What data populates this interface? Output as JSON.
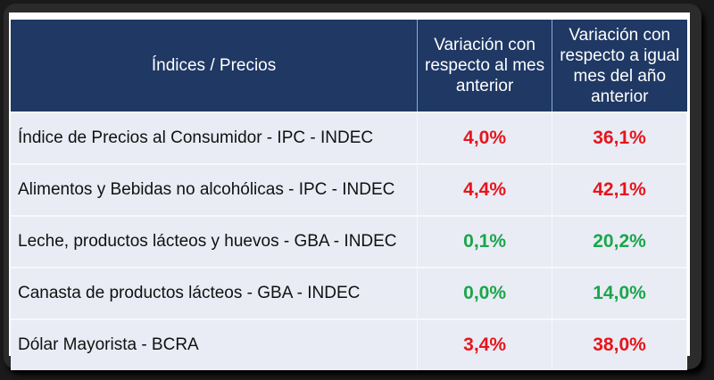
{
  "headers": [
    "Índices / Precios",
    "Variación con respecto al mes anterior",
    "Variación con respecto a igual mes del año anterior"
  ],
  "colors": {
    "header_bg": "#1f3864",
    "increase": "#e8141b",
    "low": "#1aa64a"
  },
  "rows": [
    {
      "label": "Índice de Precios al Consumidor - IPC - INDEC",
      "monthly": "4,0%",
      "yearly": "36,1%",
      "color": "red"
    },
    {
      "label": "Alimentos y Bebidas no alcohólicas - IPC - INDEC",
      "monthly": "4,4%",
      "yearly": "42,1%",
      "color": "red"
    },
    {
      "label": "Leche, productos lácteos y huevos - GBA - INDEC",
      "monthly": "0,1%",
      "yearly": "20,2%",
      "color": "green"
    },
    {
      "label": "Canasta de productos lácteos - GBA - INDEC",
      "monthly": "0,0%",
      "yearly": "14,0%",
      "color": "green"
    },
    {
      "label": "Dólar Mayorista - BCRA",
      "monthly": "3,4%",
      "yearly": "38,0%",
      "color": "red"
    }
  ]
}
